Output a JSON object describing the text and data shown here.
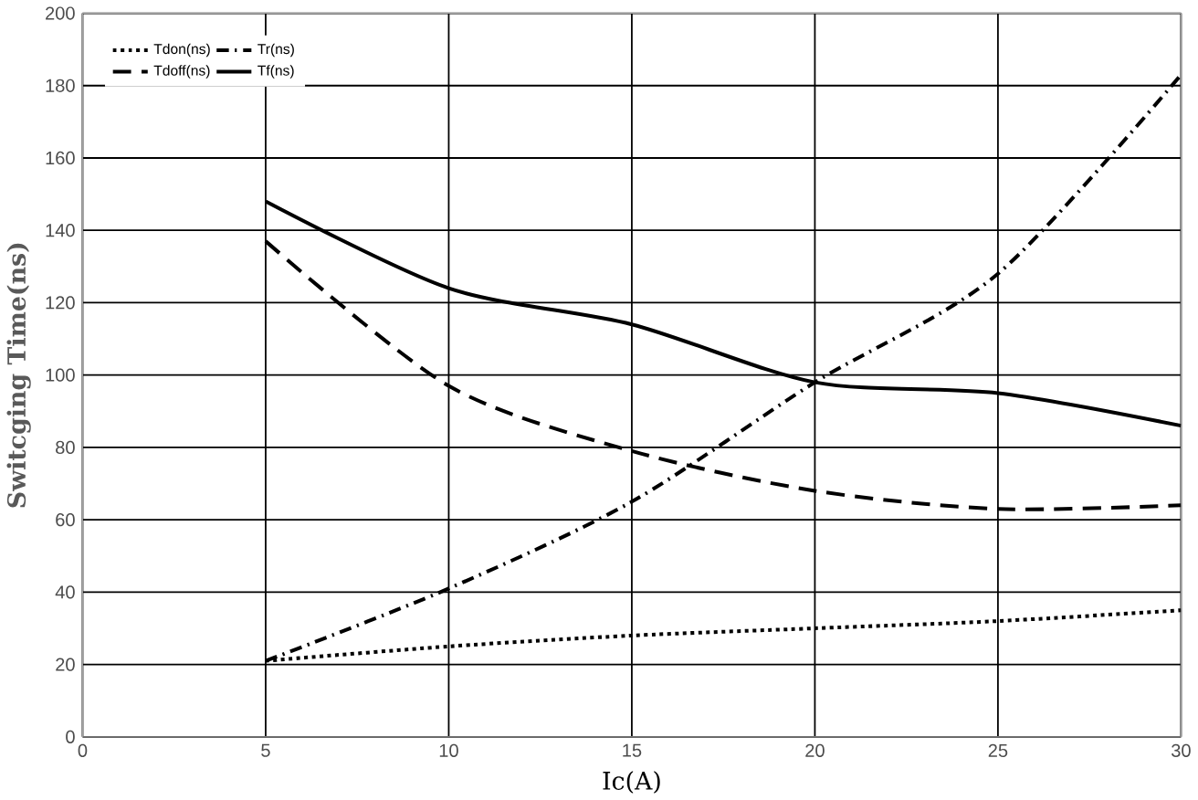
{
  "chart_data": {
    "type": "line",
    "xlabel": "Ic(A)",
    "ylabel": "Switcging Time(ns)",
    "xlim": [
      0,
      30
    ],
    "ylim": [
      0,
      200
    ],
    "xticks": [
      0,
      5,
      10,
      15,
      20,
      25,
      30
    ],
    "yticks": [
      0,
      20,
      40,
      60,
      80,
      100,
      120,
      140,
      160,
      180,
      200
    ],
    "grid": true,
    "legend": "top left",
    "x": [
      5,
      10,
      15,
      20,
      25,
      30
    ],
    "series": [
      {
        "name": "Tdon(ns)",
        "color": "#000000",
        "line_style": "dotted",
        "values": [
          21,
          25,
          28,
          30,
          32,
          35
        ]
      },
      {
        "name": "Tr(ns)",
        "color": "#000000",
        "line_style": "dashdot",
        "values": [
          21,
          41,
          65,
          98,
          128,
          183
        ]
      },
      {
        "name": "Tdoff(ns)",
        "color": "#000000",
        "line_style": "dashed",
        "values": [
          137,
          97,
          79,
          68,
          63,
          64
        ]
      },
      {
        "name": "Tf(ns)",
        "color": "#000000",
        "line_style": "solid",
        "values": [
          148,
          124,
          114,
          98,
          95,
          86
        ]
      }
    ]
  }
}
